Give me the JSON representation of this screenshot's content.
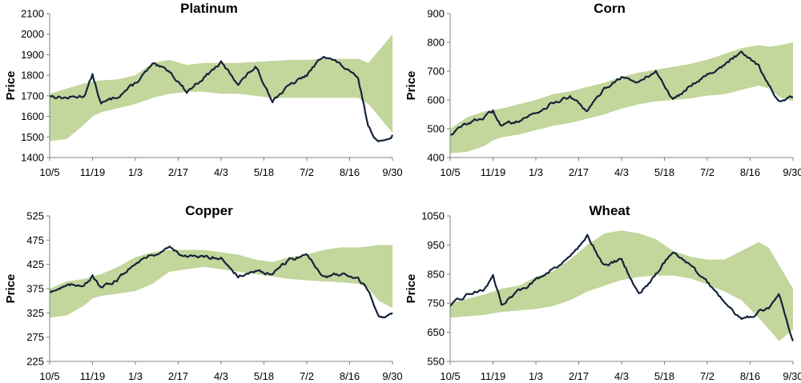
{
  "colors": {
    "band": "#c3d69b",
    "line": "#14233a",
    "axis": "#808080"
  },
  "chart_data": [
    {
      "type": "line",
      "title": "Platinum",
      "ylabel": "Price",
      "xlabel": "",
      "ylim": [
        1400,
        2100
      ],
      "yticks": [
        1400,
        1500,
        1600,
        1700,
        1800,
        1900,
        2000,
        2100
      ],
      "xticks": [
        "10/5",
        "11/19",
        "1/3",
        "2/17",
        "4/3",
        "5/18",
        "7/2",
        "8/16",
        "9/30"
      ],
      "x": [
        0,
        0.05,
        0.1,
        0.125,
        0.15,
        0.2,
        0.25,
        0.3,
        0.35,
        0.4,
        0.45,
        0.5,
        0.55,
        0.6,
        0.65,
        0.7,
        0.75,
        0.8,
        0.85,
        0.9,
        0.93,
        0.96,
        1.0
      ],
      "series": [
        {
          "name": "Price",
          "values": [
            1700,
            1690,
            1700,
            1800,
            1660,
            1700,
            1760,
            1850,
            1820,
            1720,
            1790,
            1860,
            1760,
            1840,
            1680,
            1750,
            1800,
            1900,
            1850,
            1780,
            1550,
            1470,
            1510
          ]
        },
        {
          "name": "Upper band",
          "values": [
            1710,
            1735,
            1760,
            1770,
            1775,
            1780,
            1800,
            1860,
            1875,
            1850,
            1860,
            1860,
            1860,
            1865,
            1870,
            1875,
            1875,
            1880,
            1880,
            1880,
            1860,
            1920,
            2000
          ]
        },
        {
          "name": "Lower band",
          "values": [
            1480,
            1490,
            1560,
            1600,
            1620,
            1640,
            1660,
            1690,
            1710,
            1720,
            1720,
            1710,
            1710,
            1700,
            1690,
            1690,
            1690,
            1690,
            1690,
            1690,
            1660,
            1600,
            1520
          ]
        }
      ]
    },
    {
      "type": "line",
      "title": "Corn",
      "ylabel": "Price",
      "xlabel": "",
      "ylim": [
        400,
        900
      ],
      "yticks": [
        400,
        500,
        600,
        700,
        800,
        900
      ],
      "xticks": [
        "10/5",
        "11/19",
        "1/3",
        "2/17",
        "4/3",
        "5/18",
        "7/2",
        "8/16",
        "9/30"
      ],
      "x": [
        0,
        0.05,
        0.1,
        0.125,
        0.15,
        0.2,
        0.25,
        0.3,
        0.35,
        0.4,
        0.45,
        0.5,
        0.55,
        0.6,
        0.65,
        0.7,
        0.75,
        0.8,
        0.85,
        0.9,
        0.93,
        0.96,
        1.0
      ],
      "series": [
        {
          "name": "Price",
          "values": [
            480,
            520,
            540,
            560,
            510,
            530,
            555,
            590,
            610,
            560,
            640,
            680,
            660,
            700,
            600,
            650,
            690,
            720,
            770,
            720,
            650,
            590,
            610
          ]
        },
        {
          "name": "Upper band",
          "values": [
            500,
            540,
            560,
            565,
            570,
            585,
            600,
            620,
            630,
            645,
            660,
            680,
            695,
            705,
            715,
            725,
            740,
            760,
            780,
            790,
            785,
            790,
            800
          ]
        },
        {
          "name": "Lower band",
          "values": [
            415,
            420,
            440,
            460,
            470,
            480,
            495,
            510,
            520,
            535,
            550,
            570,
            585,
            595,
            600,
            605,
            615,
            620,
            635,
            650,
            640,
            610,
            595
          ]
        }
      ]
    },
    {
      "type": "line",
      "title": "Copper",
      "ylabel": "Price",
      "xlabel": "",
      "ylim": [
        225,
        525
      ],
      "yticks": [
        225,
        275,
        325,
        375,
        425,
        475,
        525
      ],
      "xticks": [
        "10/5",
        "11/19",
        "1/3",
        "2/17",
        "4/3",
        "5/18",
        "7/2",
        "8/16",
        "9/30"
      ],
      "x": [
        0,
        0.05,
        0.1,
        0.125,
        0.15,
        0.2,
        0.25,
        0.3,
        0.35,
        0.4,
        0.45,
        0.5,
        0.55,
        0.6,
        0.65,
        0.7,
        0.75,
        0.8,
        0.85,
        0.9,
        0.93,
        0.96,
        1.0
      ],
      "series": [
        {
          "name": "Price",
          "values": [
            370,
            380,
            385,
            400,
            375,
            395,
            430,
            445,
            460,
            440,
            440,
            440,
            400,
            410,
            405,
            435,
            445,
            400,
            405,
            395,
            370,
            315,
            325
          ]
        },
        {
          "name": "Upper band",
          "values": [
            375,
            390,
            395,
            400,
            405,
            420,
            440,
            450,
            455,
            455,
            455,
            450,
            445,
            435,
            430,
            440,
            445,
            455,
            460,
            460,
            462,
            465,
            465
          ]
        },
        {
          "name": "Lower band",
          "values": [
            315,
            320,
            340,
            355,
            360,
            365,
            370,
            385,
            410,
            415,
            420,
            415,
            410,
            405,
            400,
            395,
            392,
            390,
            388,
            385,
            375,
            350,
            335
          ]
        }
      ]
    },
    {
      "type": "line",
      "title": "Wheat",
      "ylabel": "Price",
      "xlabel": "",
      "ylim": [
        550,
        1050
      ],
      "yticks": [
        550,
        650,
        750,
        850,
        950,
        1050
      ],
      "xticks": [
        "10/5",
        "11/19",
        "1/3",
        "2/17",
        "4/3",
        "5/18",
        "7/2",
        "8/16",
        "9/30"
      ],
      "x": [
        0,
        0.05,
        0.1,
        0.125,
        0.15,
        0.2,
        0.25,
        0.3,
        0.35,
        0.4,
        0.45,
        0.5,
        0.55,
        0.6,
        0.65,
        0.7,
        0.75,
        0.8,
        0.85,
        0.9,
        0.93,
        0.96,
        1.0
      ],
      "series": [
        {
          "name": "Price",
          "values": [
            740,
            780,
            800,
            840,
            750,
            790,
            830,
            870,
            910,
            980,
            880,
            900,
            780,
            850,
            930,
            880,
            820,
            760,
            690,
            720,
            730,
            780,
            620
          ]
        },
        {
          "name": "Upper band",
          "values": [
            750,
            765,
            780,
            790,
            800,
            810,
            840,
            860,
            900,
            950,
            990,
            1000,
            990,
            970,
            930,
            910,
            900,
            900,
            930,
            960,
            940,
            880,
            800
          ]
        },
        {
          "name": "Lower band",
          "values": [
            700,
            705,
            710,
            715,
            720,
            725,
            730,
            740,
            760,
            790,
            810,
            830,
            840,
            845,
            845,
            835,
            815,
            790,
            760,
            700,
            660,
            620,
            660
          ]
        }
      ]
    }
  ]
}
